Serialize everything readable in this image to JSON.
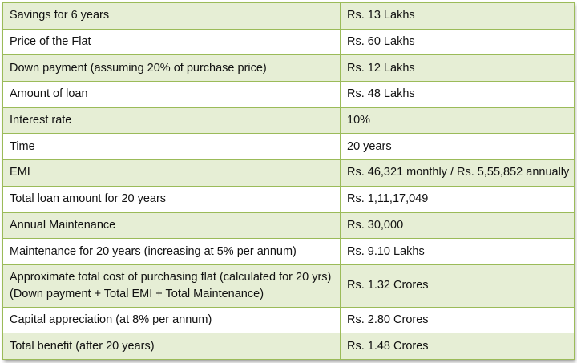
{
  "table": {
    "rows": [
      {
        "label": [
          "Savings for 6 years"
        ],
        "value": "Rs. 13 Lakhs"
      },
      {
        "label": [
          "Price of the Flat"
        ],
        "value": "Rs. 60 Lakhs"
      },
      {
        "label": [
          "Down payment (assuming 20% of purchase price)"
        ],
        "value": "Rs. 12 Lakhs"
      },
      {
        "label": [
          "Amount of loan"
        ],
        "value": "Rs. 48 Lakhs"
      },
      {
        "label": [
          "Interest rate"
        ],
        "value": "10%"
      },
      {
        "label": [
          "Time"
        ],
        "value": "20 years"
      },
      {
        "label": [
          "EMI"
        ],
        "value": "Rs. 46,321 monthly / Rs. 5,55,852 annually"
      },
      {
        "label": [
          "Total loan amount for 20 years"
        ],
        "value": "Rs. 1,11,17,049"
      },
      {
        "label": [
          "Annual Maintenance"
        ],
        "value": "Rs. 30,000"
      },
      {
        "label": [
          "Maintenance for 20 years (increasing at 5% per annum)"
        ],
        "value": "Rs. 9.10 Lakhs"
      },
      {
        "label": [
          "Approximate total cost of purchasing flat (calculated for 20 yrs)",
          "(Down payment + Total EMI + Total Maintenance)"
        ],
        "value": "Rs. 1.32 Crores"
      },
      {
        "label": [
          "Capital appreciation (at 8% per annum)"
        ],
        "value": "Rs. 2.80 Crores"
      },
      {
        "label": [
          "Total benefit (after 20 years)"
        ],
        "value": "Rs. 1.48 Crores"
      }
    ]
  },
  "colors": {
    "border": "#9bbb59",
    "band": "#e6eed5",
    "plain": "#ffffff",
    "text": "#111111"
  }
}
